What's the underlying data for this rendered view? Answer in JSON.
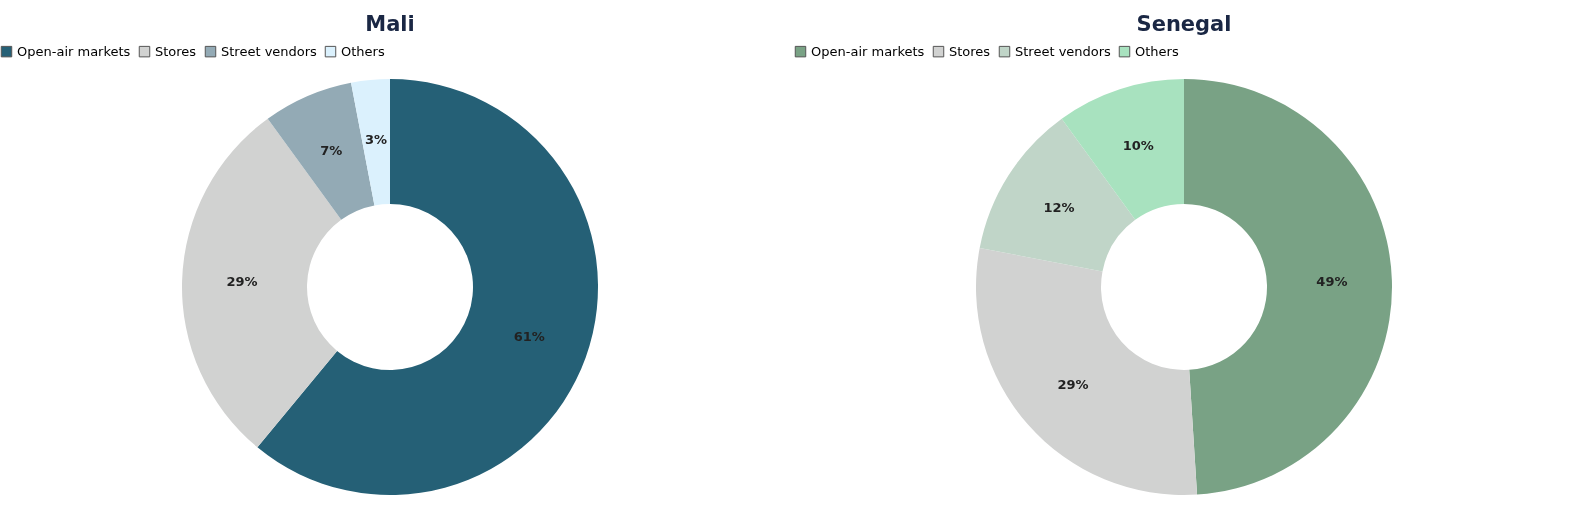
{
  "chart_data": [
    {
      "type": "donut",
      "title": "Mali",
      "categories": [
        "Open-air markets",
        "Stores",
        "Street vendors",
        "Others"
      ],
      "values": [
        61,
        29,
        7,
        3
      ],
      "colors": [
        "#256076",
        "#d1d2d1",
        "#93aab5",
        "#dbf1fd"
      ],
      "value_labels": [
        "61%",
        "29%",
        "7%",
        "3%"
      ],
      "legend": "top"
    },
    {
      "type": "donut",
      "title": "Senegal",
      "categories": [
        "Open-air markets",
        "Stores",
        "Street vendors",
        "Others"
      ],
      "values": [
        49,
        29,
        12,
        10
      ],
      "colors": [
        "#79a285",
        "#d1d2d1",
        "#c0d5c8",
        "#a8e2bf"
      ],
      "value_labels": [
        "49%",
        "29%",
        "12%",
        "10%"
      ],
      "legend": "top"
    }
  ]
}
